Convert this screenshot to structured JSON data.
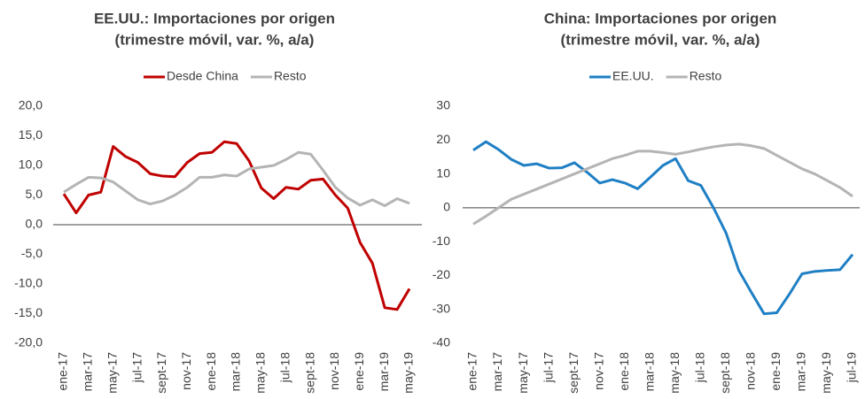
{
  "chart_data": [
    {
      "type": "line",
      "title": [
        "EE.UU.: Importaciones por origen",
        "(trimestre móvil, var. %, a/a)"
      ],
      "categories": [
        "ene-17",
        null,
        "mar-17",
        null,
        "may-17",
        null,
        "jul-17",
        null,
        "sept-17",
        null,
        "nov-17",
        null,
        "ene-18",
        null,
        "mar-18",
        null,
        "may-18",
        null,
        "jul-18",
        null,
        "sept-18",
        null,
        "nov-18",
        null,
        "ene-19",
        null,
        "mar-19",
        null,
        "may-19"
      ],
      "series": [
        {
          "name": "Desde China",
          "color": "#c00000",
          "values": [
            5.2,
            2,
            5,
            5.5,
            13.2,
            11.5,
            10.5,
            8.6,
            8.2,
            8.1,
            10.5,
            12,
            12.2,
            14,
            13.7,
            10.8,
            6.2,
            4.4,
            6.3,
            6,
            7.5,
            7.7,
            5,
            2.8,
            -3,
            -6.5,
            -14,
            -14.3,
            -10.8
          ]
        },
        {
          "name": "Resto",
          "color": "#b4b4b4",
          "values": [
            5.5,
            6.8,
            8,
            7.9,
            7.2,
            5.7,
            4.2,
            3.5,
            4,
            5,
            6.3,
            8,
            8,
            8.4,
            8.2,
            9.4,
            9.7,
            10,
            11,
            12.2,
            11.9,
            9.2,
            6.3,
            4.5,
            3.3,
            4.2,
            3.2,
            4.4,
            3.6
          ]
        }
      ],
      "ylim": [
        -20,
        20
      ],
      "yticks": [
        {
          "value": 20,
          "label": "20,0"
        },
        {
          "value": 15,
          "label": "15,0"
        },
        {
          "value": 10,
          "label": "10,0"
        },
        {
          "value": 5,
          "label": "5,0"
        },
        {
          "value": 0,
          "label": "0,0"
        },
        {
          "value": -5,
          "label": "-5,0"
        },
        {
          "value": -10,
          "label": "-10,0"
        },
        {
          "value": -15,
          "label": "-15,0"
        },
        {
          "value": -20,
          "label": "-20,0"
        }
      ],
      "grid": false
    },
    {
      "type": "line",
      "title": [
        "China: Importaciones por origen",
        "(trimestre móvil, var. %, a/a)"
      ],
      "categories": [
        "ene-17",
        null,
        "mar-17",
        null,
        "may-17",
        null,
        "jul-17",
        null,
        "sept-17",
        null,
        "nov-17",
        null,
        "ene-18",
        null,
        "mar-18",
        null,
        "may-18",
        null,
        "jul-18",
        null,
        "sept-18",
        null,
        "nov-18",
        null,
        "ene-19",
        null,
        "mar-19",
        null,
        "may-19",
        null,
        "jul-19"
      ],
      "series": [
        {
          "name": "EE.UU.",
          "color": "#1f7fc4",
          "values": [
            17,
            19.5,
            17.2,
            14.3,
            12.5,
            13,
            11.7,
            11.8,
            13.3,
            10.5,
            7.3,
            8.3,
            7.3,
            5.6,
            9,
            12.5,
            14.5,
            8,
            6.6,
            0,
            -7.5,
            -18.5,
            -25,
            -31.3,
            -31,
            -25.5,
            -19.5,
            -18.8,
            -18.5,
            -18.3,
            -13.8
          ]
        },
        {
          "name": "Resto",
          "color": "#b4b4b4",
          "values": [
            -4.8,
            -2.5,
            0,
            2.5,
            4,
            5.5,
            7,
            8.5,
            10,
            11.5,
            13,
            14.5,
            15.5,
            16.7,
            16.7,
            16.3,
            15.8,
            16.5,
            17.3,
            18,
            18.5,
            18.8,
            18.3,
            17.5,
            15.5,
            13.5,
            11.5,
            10,
            8,
            6,
            3.4
          ]
        }
      ],
      "ylim": [
        -40,
        30
      ],
      "yticks": [
        30,
        20,
        10,
        0,
        -10,
        -20,
        -30,
        -40
      ],
      "grid": false
    }
  ]
}
